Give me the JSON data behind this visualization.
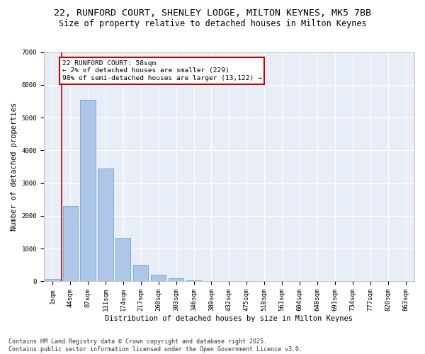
{
  "title_line1": "22, RUNFORD COURT, SHENLEY LODGE, MILTON KEYNES, MK5 7BB",
  "title_line2": "Size of property relative to detached houses in Milton Keynes",
  "xlabel": "Distribution of detached houses by size in Milton Keynes",
  "ylabel": "Number of detached properties",
  "categories": [
    "1sqm",
    "44sqm",
    "87sqm",
    "131sqm",
    "174sqm",
    "217sqm",
    "260sqm",
    "303sqm",
    "346sqm",
    "389sqm",
    "432sqm",
    "475sqm",
    "518sqm",
    "561sqm",
    "604sqm",
    "648sqm",
    "691sqm",
    "734sqm",
    "777sqm",
    "820sqm",
    "863sqm"
  ],
  "values": [
    70,
    2300,
    5550,
    3450,
    1320,
    510,
    200,
    90,
    40,
    0,
    0,
    0,
    0,
    0,
    0,
    0,
    0,
    0,
    0,
    0,
    0
  ],
  "bar_color": "#aec6e8",
  "bar_edge_color": "#5a9fd4",
  "vline_x": 0.5,
  "vline_color": "#cc0000",
  "annotation_title": "22 RUNFORD COURT: 58sqm",
  "annotation_line2": "← 2% of detached houses are smaller (229)",
  "annotation_line3": "98% of semi-detached houses are larger (13,122) →",
  "annotation_box_color": "#cc0000",
  "ylim": [
    0,
    7000
  ],
  "yticks": [
    0,
    1000,
    2000,
    3000,
    4000,
    5000,
    6000,
    7000
  ],
  "bg_color": "#e8eef7",
  "grid_color": "#ffffff",
  "footer_line1": "Contains HM Land Registry data © Crown copyright and database right 2025.",
  "footer_line2": "Contains public sector information licensed under the Open Government Licence v3.0.",
  "title_fontsize": 9.5,
  "subtitle_fontsize": 8.5,
  "axis_label_fontsize": 7.5,
  "tick_fontsize": 6.5,
  "annotation_fontsize": 6.8,
  "footer_fontsize": 6.0
}
